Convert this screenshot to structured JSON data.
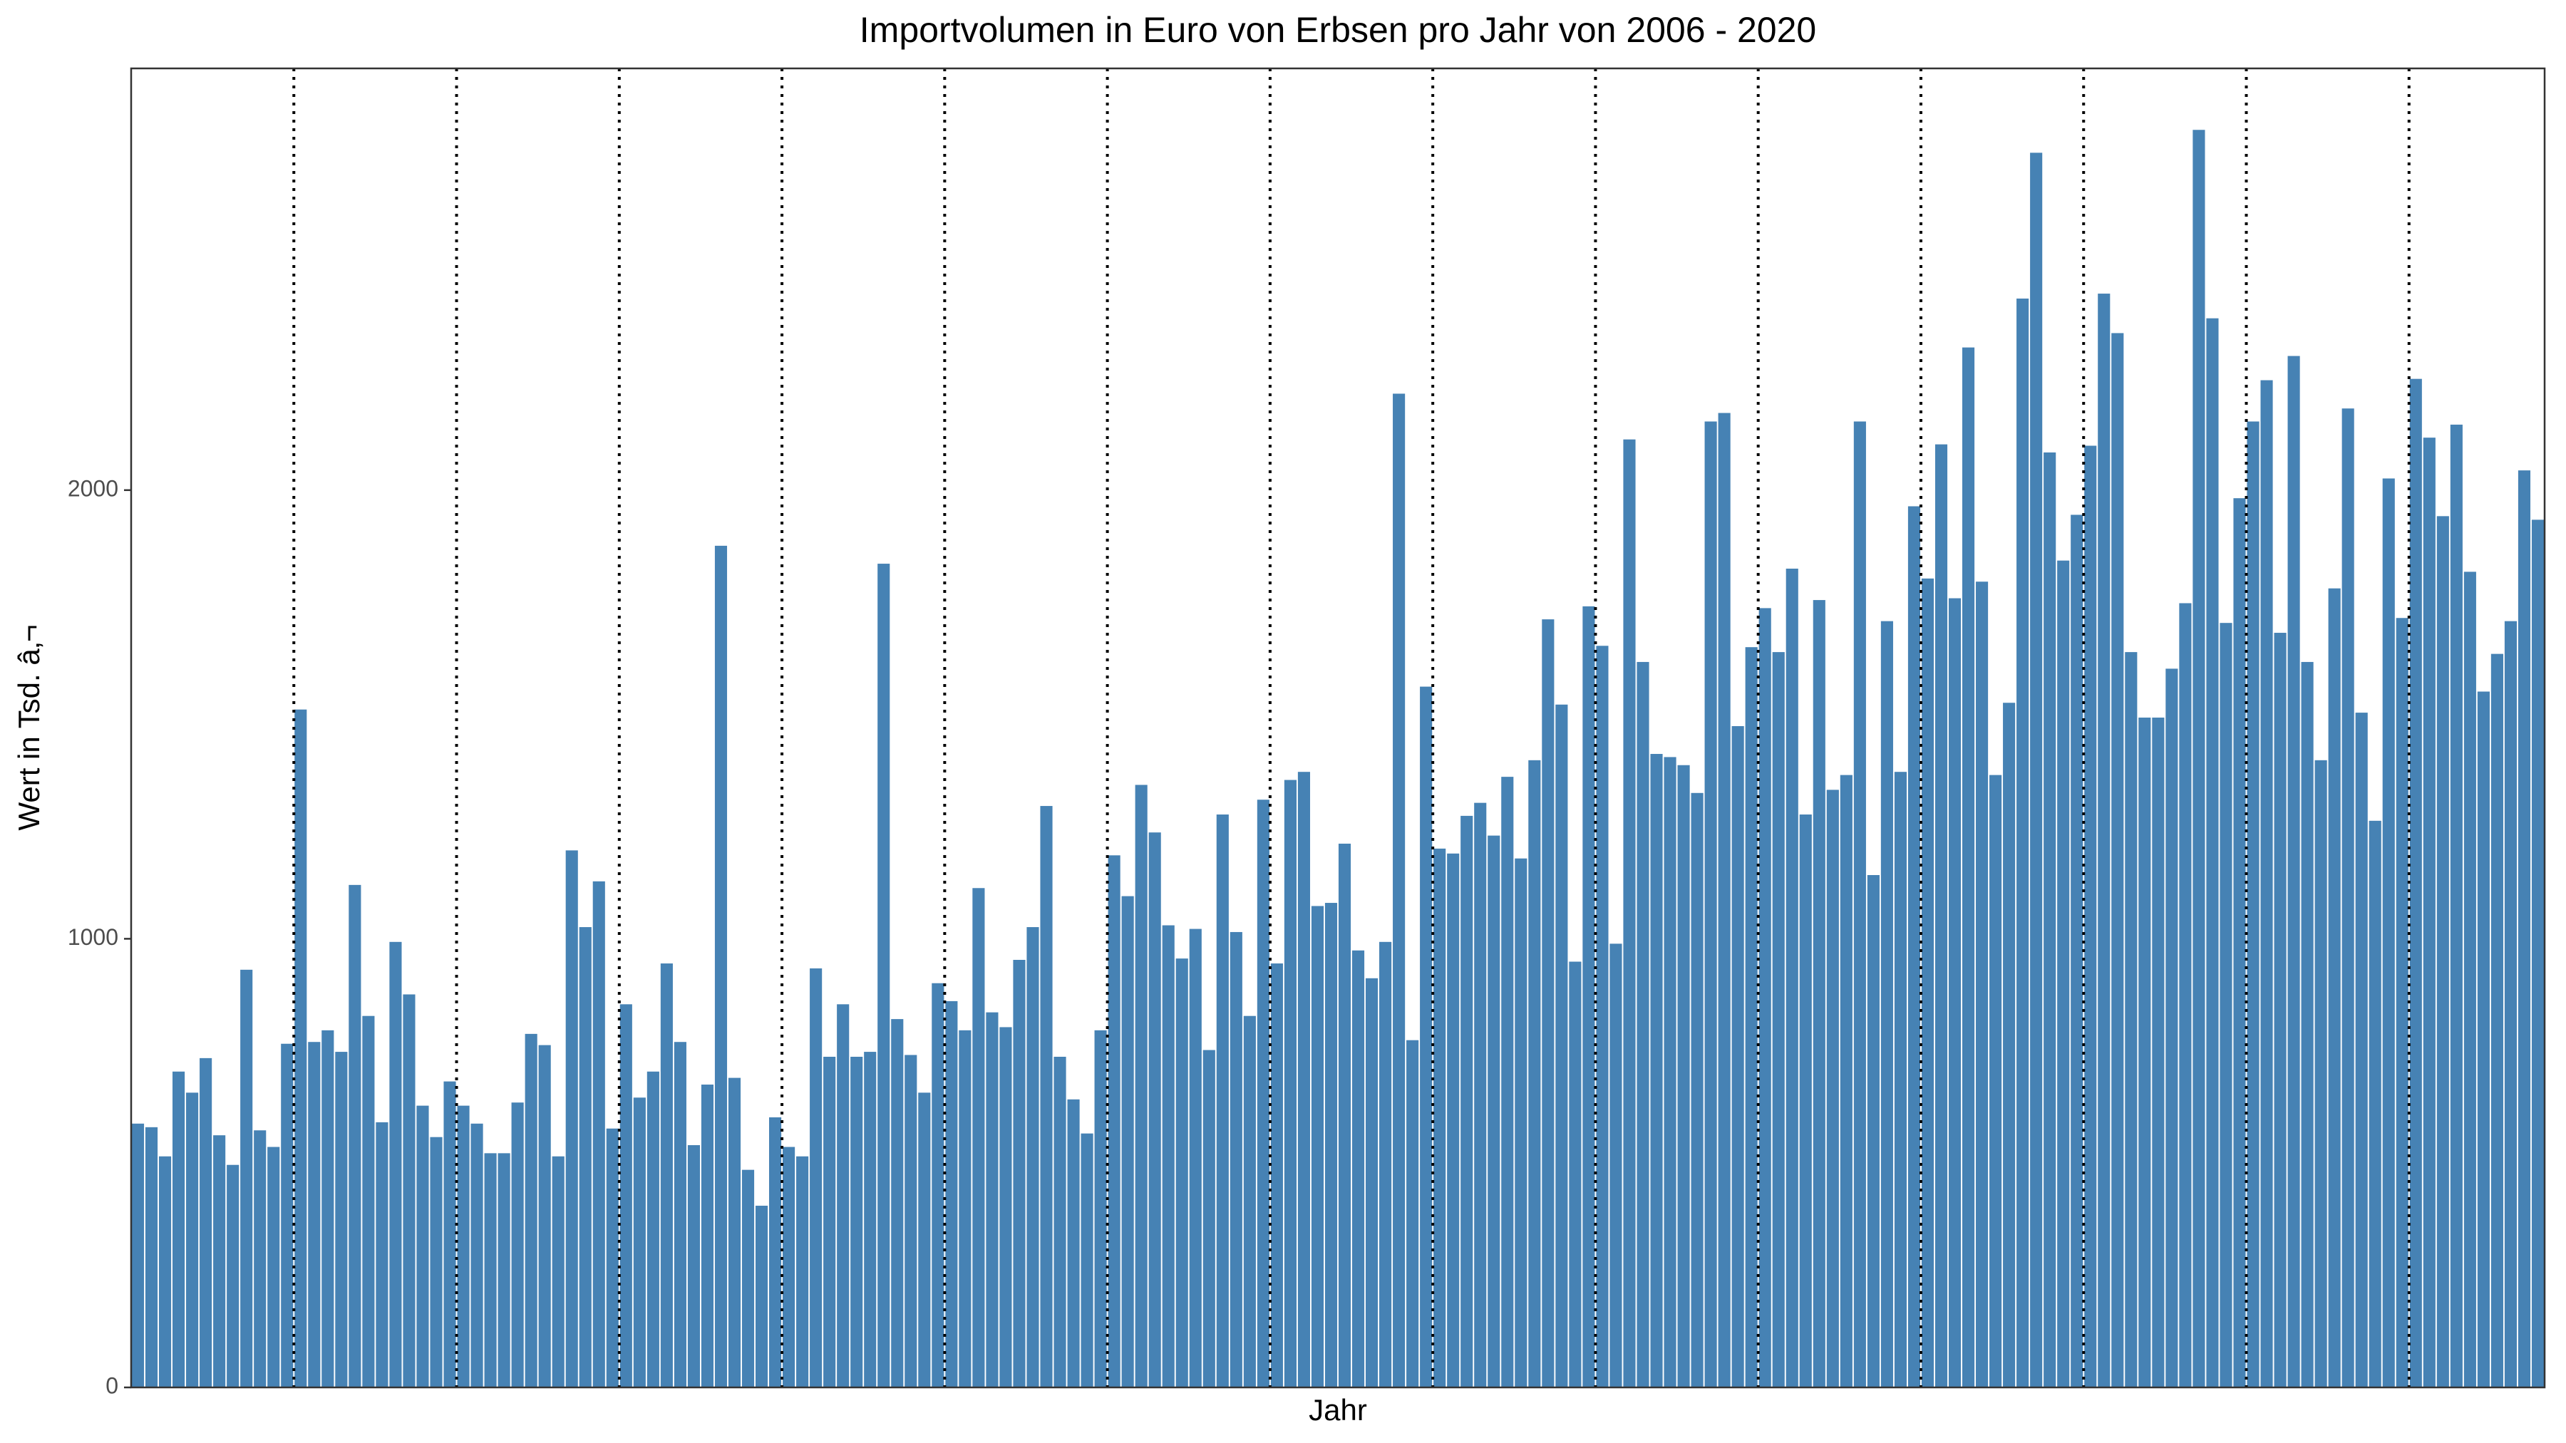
{
  "chart_data": {
    "type": "bar",
    "title": "Importvolumen in Euro von Erbsen pro Jahr von 2006 - 2020",
    "xlabel": "Jahr",
    "ylabel": "Wert in Tsd. â‚¬",
    "color": "#4682b4",
    "categories": [
      null,
      null,
      null,
      null,
      null,
      null,
      null,
      null,
      null,
      null,
      null,
      null,
      null,
      null,
      null,
      null,
      null,
      null,
      null,
      null,
      null,
      null,
      null,
      null,
      null,
      null,
      null,
      null,
      null,
      null,
      null,
      null,
      null,
      null,
      null,
      null,
      null,
      null,
      null,
      null,
      null,
      null,
      null,
      null,
      null,
      null,
      null,
      null,
      null,
      null,
      null,
      null,
      null,
      null,
      null,
      null,
      null,
      null,
      null,
      null,
      null,
      null,
      null,
      null,
      null,
      null,
      null,
      null,
      null,
      null,
      null,
      null,
      null,
      null,
      null,
      null,
      null,
      null,
      null,
      null,
      null,
      null,
      null,
      null,
      null,
      null,
      null,
      null,
      null,
      null,
      null,
      null,
      null,
      null,
      null,
      null,
      null,
      null,
      null,
      null,
      null,
      null,
      null,
      null,
      null,
      null,
      null,
      null,
      null,
      null,
      null,
      null,
      null,
      null,
      null,
      null,
      null,
      null,
      null,
      null,
      null,
      null,
      null,
      null,
      null,
      null,
      null,
      null,
      null,
      null,
      null,
      null,
      null,
      null,
      null,
      null,
      null,
      null,
      null,
      null,
      null,
      null,
      null,
      null,
      null,
      null,
      null,
      null,
      null,
      null,
      null,
      null,
      null,
      null,
      null,
      null,
      null,
      null,
      null,
      null,
      null,
      null,
      null,
      null,
      null,
      null,
      null,
      null,
      null,
      null,
      null,
      null,
      null,
      null,
      null,
      null,
      null,
      null
    ],
    "values": [
      588,
      580,
      515,
      704,
      657,
      734,
      562,
      496,
      931,
      573,
      536,
      766,
      1511,
      770,
      796,
      748,
      1120,
      828,
      591,
      993,
      876,
      628,
      558,
      682,
      628,
      588,
      522,
      522,
      635,
      788,
      763,
      515,
      1197,
      1026,
      1128,
      577,
      854,
      646,
      704,
      945,
      770,
      540,
      675,
      1876,
      690,
      485,
      405,
      602,
      536,
      515,
      934,
      737,
      854,
      737,
      748,
      1836,
      821,
      741,
      657,
      901,
      861,
      796,
      1113,
      836,
      803,
      953,
      1026,
      1296,
      737,
      642,
      566,
      796,
      1186,
      1095,
      1343,
      1237,
      1030,
      956,
      1022,
      752,
      1277,
      1015,
      828,
      1310,
      945,
      1354,
      1372,
      1073,
      1080,
      1212,
      974,
      912,
      993,
      2215,
      774,
      1562,
      1201,
      1190,
      1274,
      1303,
      1230,
      1361,
      1179,
      1398,
      1712,
      1522,
      949,
      1741,
      1653,
      989,
      2113,
      1617,
      1412,
      1405,
      1387,
      1325,
      2153,
      2172,
      1474,
      1650,
      1737,
      1639,
      1825,
      1277,
      1755,
      1332,
      1365,
      2153,
      1142,
      1708,
      1372,
      1964,
      1803,
      2102,
      1759,
      2318,
      1796,
      1365,
      1526,
      2427,
      2752,
      2084,
      1843,
      1945,
      2099,
      2438,
      2350,
      1639,
      1493,
      1493,
      1602,
      1748,
      2803,
      2383,
      1704,
      1982,
      2153,
      2245,
      1682,
      2299,
      1617,
      1398,
      1781,
      2182,
      1504,
      1263,
      2026,
      1715,
      2248,
      2117,
      1942,
      2146,
      1818,
      1551,
      1635,
      1708,
      2044,
      1934
    ],
    "ylim": [
      0,
      2940
    ],
    "yticks": [
      0,
      1000,
      2000
    ],
    "grid": false
  }
}
